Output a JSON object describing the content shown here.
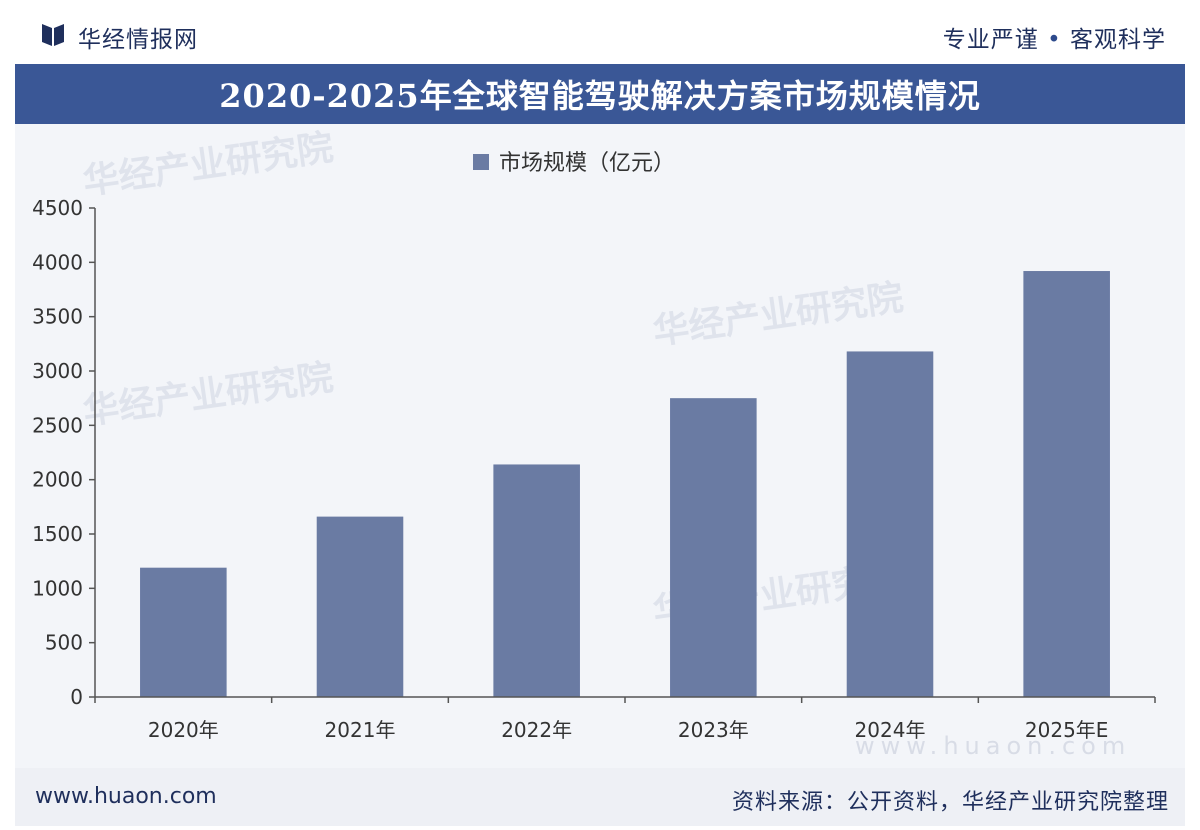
{
  "header": {
    "brand": "华经情报网",
    "slogan_left": "专业严谨",
    "slogan_dot": "•",
    "slogan_right": "客观科学",
    "logo_icon": "huajing-logo-icon"
  },
  "title": "2020-2025年全球智能驾驶解决方案市场规模情况",
  "footer": {
    "website": "www.huaon.com",
    "source": "资料来源：公开资料，华经产业研究院整理"
  },
  "watermark": {
    "text": "华经产业研究院",
    "url": "www.huaon.com"
  },
  "colors": {
    "bar": "#6a7ba3",
    "title_bar": "#3a5796",
    "text": "#1f2f5c"
  },
  "chart_data": {
    "type": "bar",
    "categories": [
      "2020年",
      "2021年",
      "2022年",
      "2023年",
      "2024年",
      "2025年E"
    ],
    "series": [
      {
        "name": "市场规模（亿元）",
        "values": [
          1190,
          1660,
          2140,
          2750,
          3180,
          3920
        ]
      }
    ],
    "yticks": [
      0,
      500,
      1000,
      1500,
      2000,
      2500,
      3000,
      3500,
      4000,
      4500
    ],
    "ylim": [
      0,
      4500
    ],
    "grid": false,
    "legend": "top-center"
  }
}
